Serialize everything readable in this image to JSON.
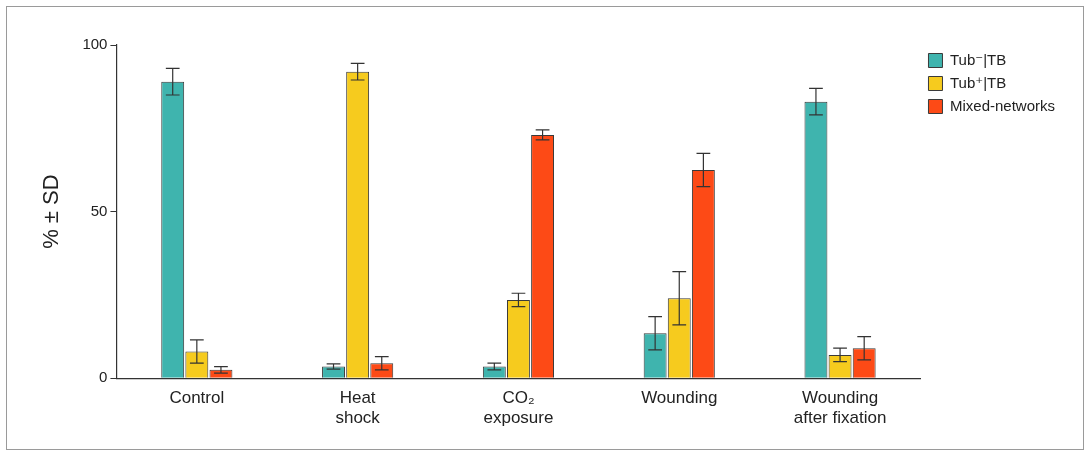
{
  "chart_data": {
    "type": "bar",
    "y_label": "% ± SD",
    "categories": [
      "Control",
      "Heat\nshock",
      "CO₂\nexposure",
      "Wounding",
      "Wounding\nafter fixation"
    ],
    "series": [
      {
        "name": "Tub⁻|TB",
        "color": "#3fb4ae",
        "values": [
          89,
          3.5,
          3.5,
          13.5,
          83
        ],
        "errors": [
          4,
          0.8,
          1,
          5,
          4
        ]
      },
      {
        "name": "Tub⁺|TB",
        "color": "#f6cb1e",
        "values": [
          8,
          92,
          23.5,
          24,
          7
        ],
        "errors": [
          3.5,
          2.5,
          2,
          8,
          2
        ]
      },
      {
        "name": "Mixed-networks",
        "color": "#fd4a16",
        "values": [
          2.5,
          4.5,
          73,
          62.5,
          9
        ],
        "errors": [
          1,
          2,
          1.5,
          5,
          3.5
        ]
      }
    ],
    "ylim": [
      0,
      100
    ],
    "yticks": [
      0,
      50,
      100
    ],
    "grid": false,
    "legend": "right"
  }
}
